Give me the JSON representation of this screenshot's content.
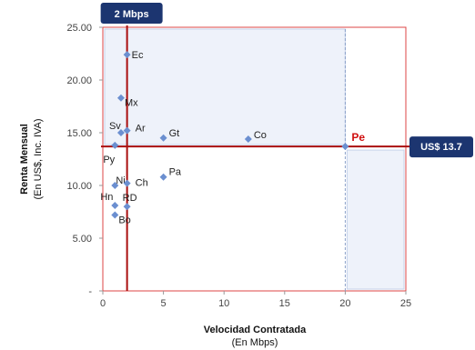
{
  "chart_data": {
    "type": "scatter",
    "xlabel": "Velocidad Contratada",
    "xlabel_sub": "(En Mbps)",
    "ylabel": "Renta Mensual",
    "ylabel_sub": "(En US$, Inc. IVA)",
    "xlim": [
      0,
      25
    ],
    "ylim": [
      0,
      25
    ],
    "x_ticks": [
      "0",
      "5",
      "10",
      "15",
      "20",
      "25"
    ],
    "y_ticks": [
      "-",
      "5.00",
      "10.00",
      "15.00",
      "20.00",
      "25.00"
    ],
    "grid": false,
    "points": [
      {
        "label": "Ec",
        "x": 2,
        "y": 22.4
      },
      {
        "label": "Mx",
        "x": 1.5,
        "y": 18.3
      },
      {
        "label": "Sv",
        "x": 1.5,
        "y": 15.0
      },
      {
        "label": "Ar",
        "x": 2,
        "y": 15.2
      },
      {
        "label": "Gt",
        "x": 5,
        "y": 14.5
      },
      {
        "label": "Co",
        "x": 12,
        "y": 14.4
      },
      {
        "label": "Py",
        "x": 1,
        "y": 13.8
      },
      {
        "label": "Pe",
        "x": 20,
        "y": 13.7,
        "highlight": true
      },
      {
        "label": "Pa",
        "x": 5,
        "y": 10.8
      },
      {
        "label": "Ni",
        "x": 1,
        "y": 10.0
      },
      {
        "label": "Ch",
        "x": 2,
        "y": 10.2
      },
      {
        "label": "Hn",
        "x": 1,
        "y": 8.1
      },
      {
        "label": "RD",
        "x": 2,
        "y": 8.0
      },
      {
        "label": "Bo",
        "x": 1,
        "y": 7.2
      }
    ],
    "reference_lines": {
      "vertical_x": 2,
      "horizontal_y": 13.7,
      "dashed_vertical_x": 20
    },
    "callouts": {
      "speed": "2 Mbps",
      "price": "US$ 13.7"
    },
    "colors": {
      "point": "#6b8fd0",
      "reference_line": "#aa1010",
      "highlight_label": "#d01010",
      "shade": "#eef2fa",
      "callout_fill": "#1c3570"
    }
  }
}
